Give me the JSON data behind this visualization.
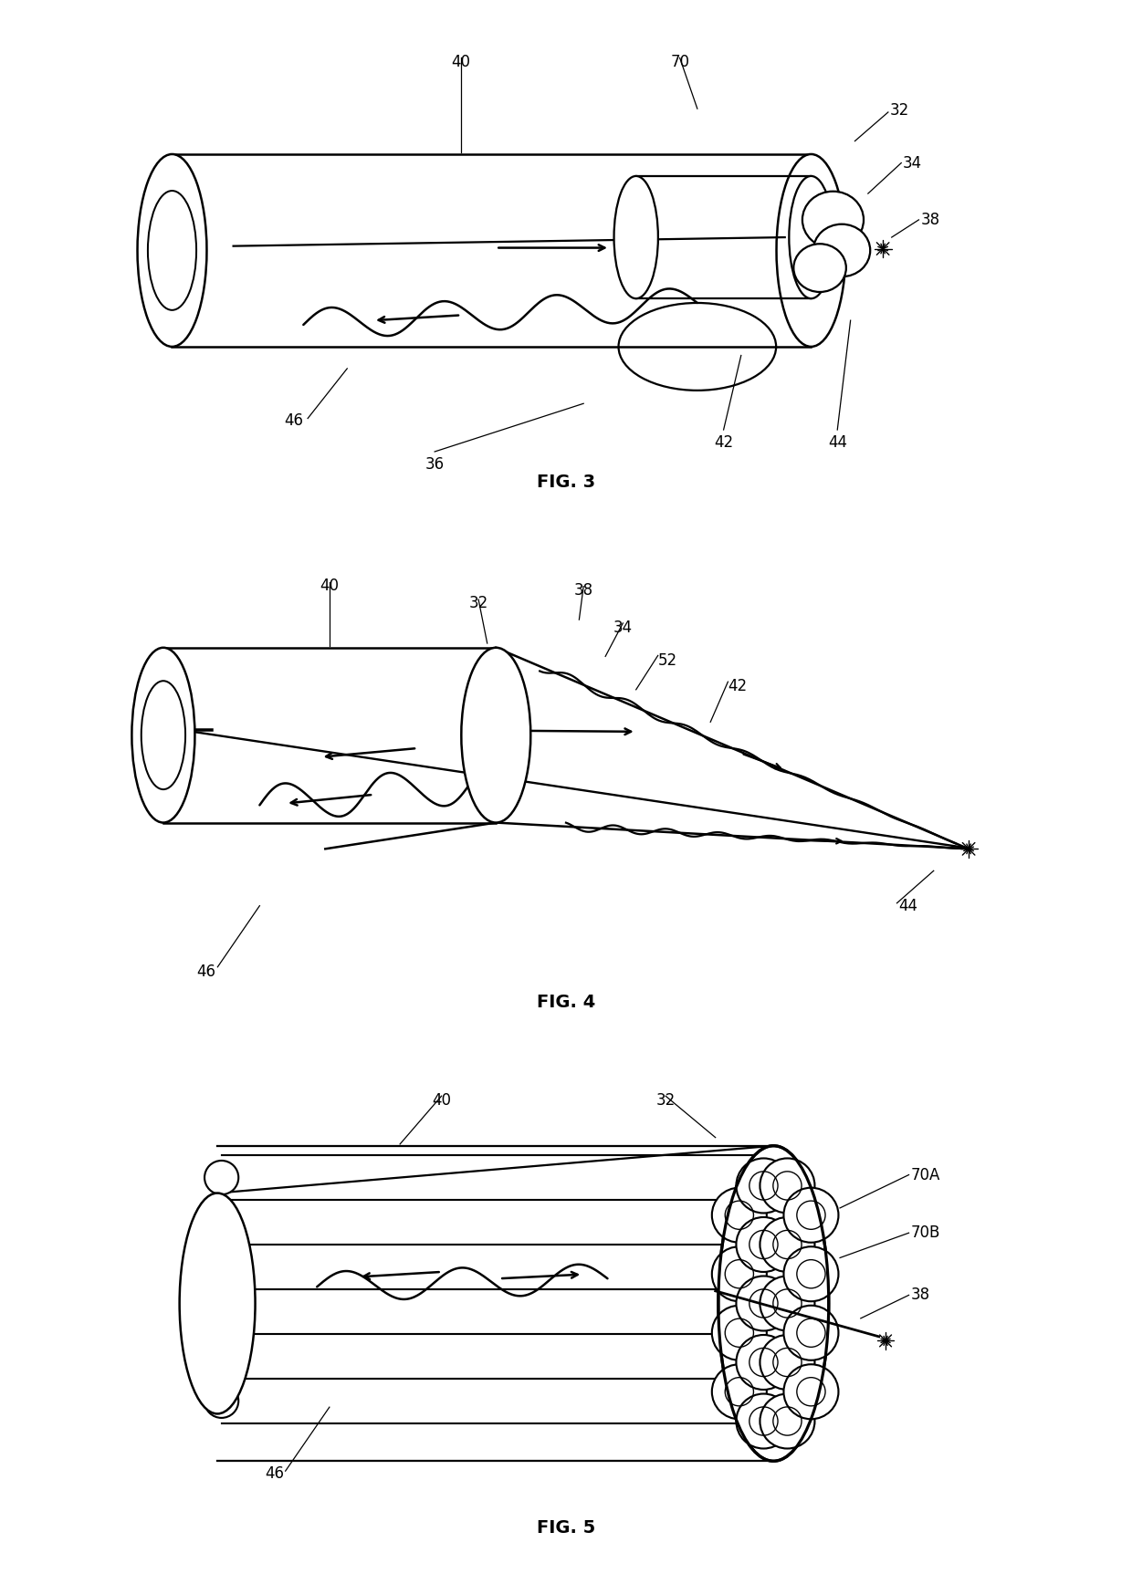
{
  "bg_color": "#ffffff",
  "line_color": "#000000",
  "fig3_label": "FIG. 3",
  "fig4_label": "FIG. 4",
  "fig5_label": "FIG. 5"
}
